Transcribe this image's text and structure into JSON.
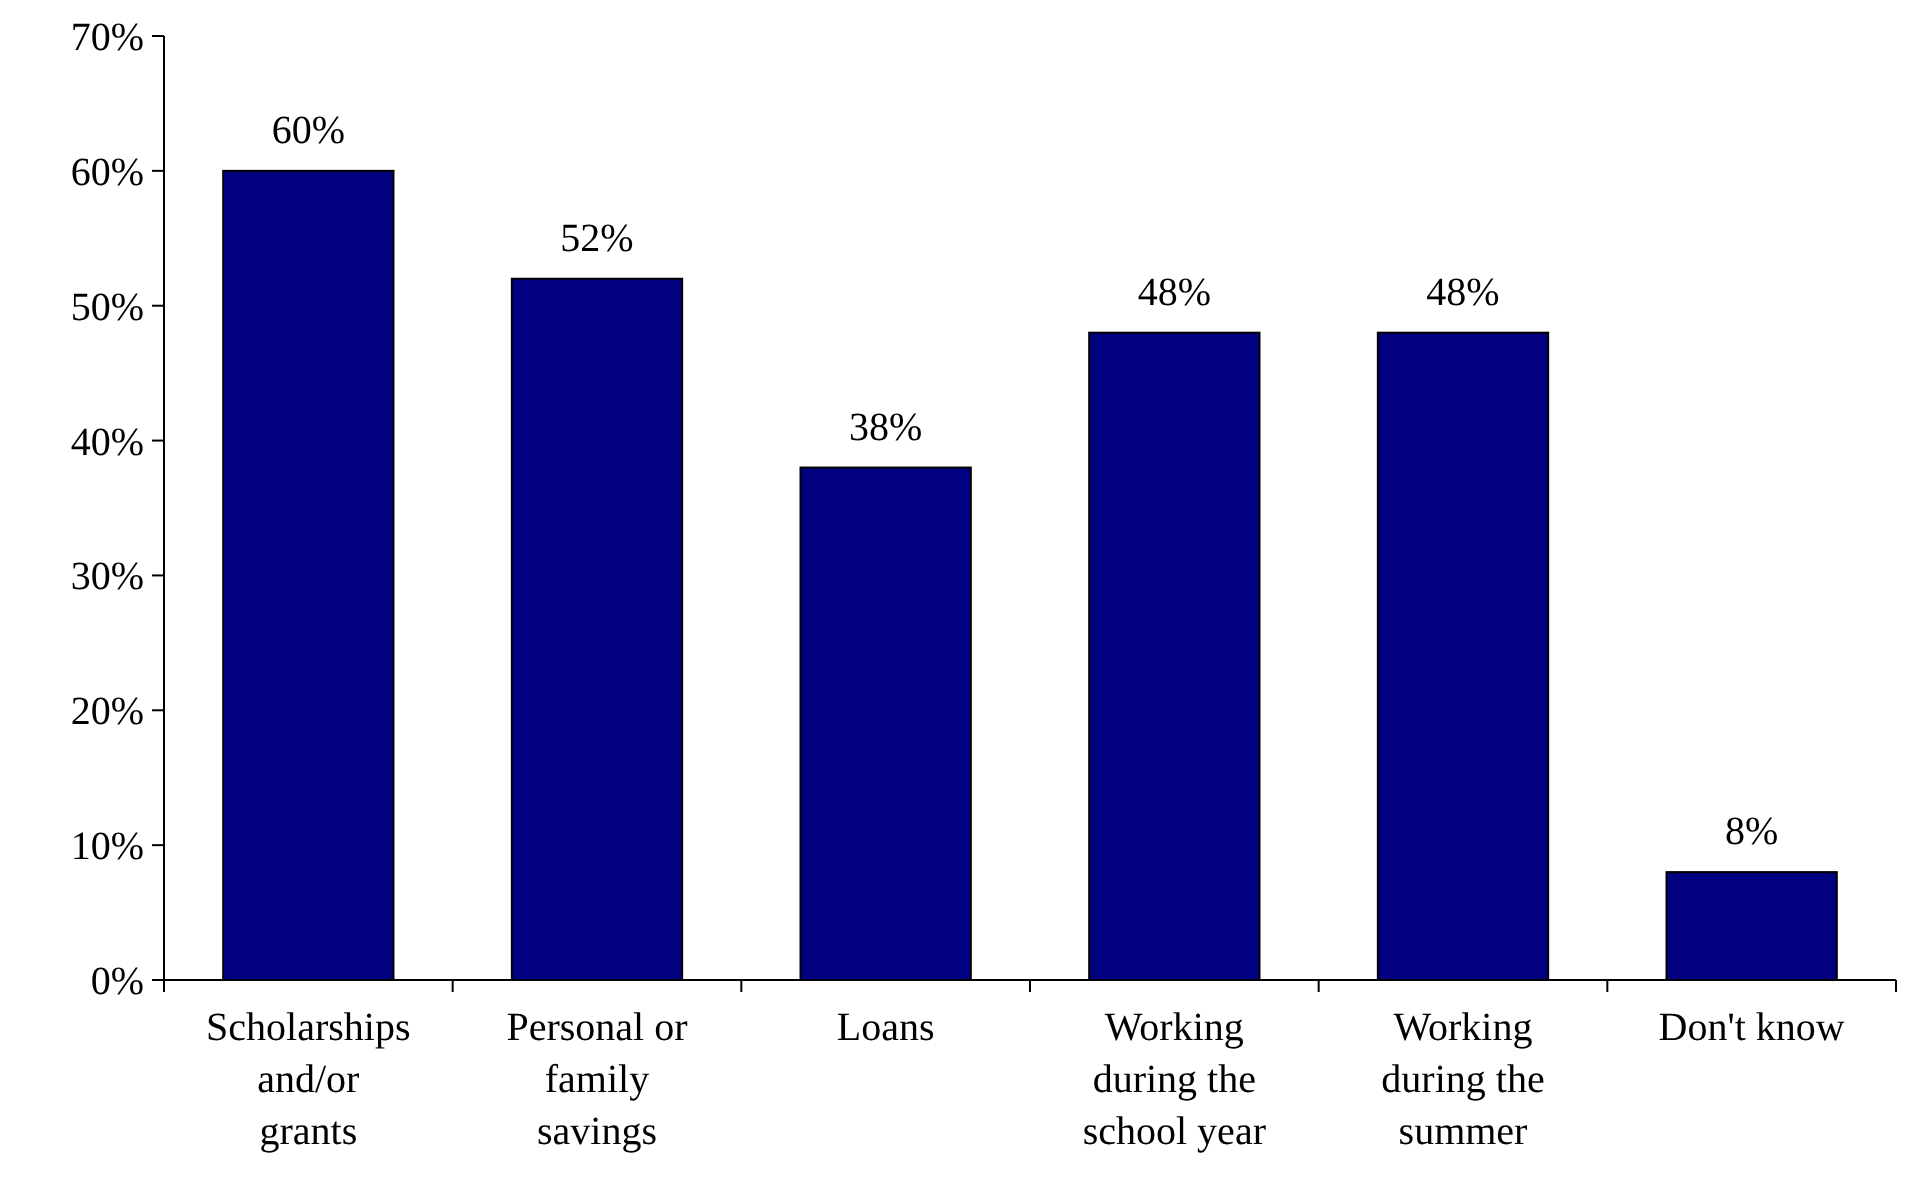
{
  "chart_data": {
    "type": "bar",
    "categories": [
      "Scholarships\nand/or\ngrants",
      "Personal or\nfamily\nsavings",
      "Loans",
      "Working\nduring the\nschool year",
      "Working\nduring the\nsummer",
      "Don't know"
    ],
    "values": [
      60,
      52,
      38,
      48,
      48,
      8
    ],
    "value_labels": [
      "60%",
      "52%",
      "38%",
      "48%",
      "48%",
      "8%"
    ],
    "color": "#000080",
    "ylim": [
      0,
      70
    ],
    "yticks": [
      {
        "value": 0,
        "label": "0%"
      },
      {
        "value": 10,
        "label": "10%"
      },
      {
        "value": 20,
        "label": "20%"
      },
      {
        "value": 30,
        "label": "30%"
      },
      {
        "value": 40,
        "label": "40%"
      },
      {
        "value": 50,
        "label": "50%"
      },
      {
        "value": 60,
        "label": "60%"
      },
      {
        "value": 70,
        "label": "70%"
      }
    ],
    "grid": false
  }
}
